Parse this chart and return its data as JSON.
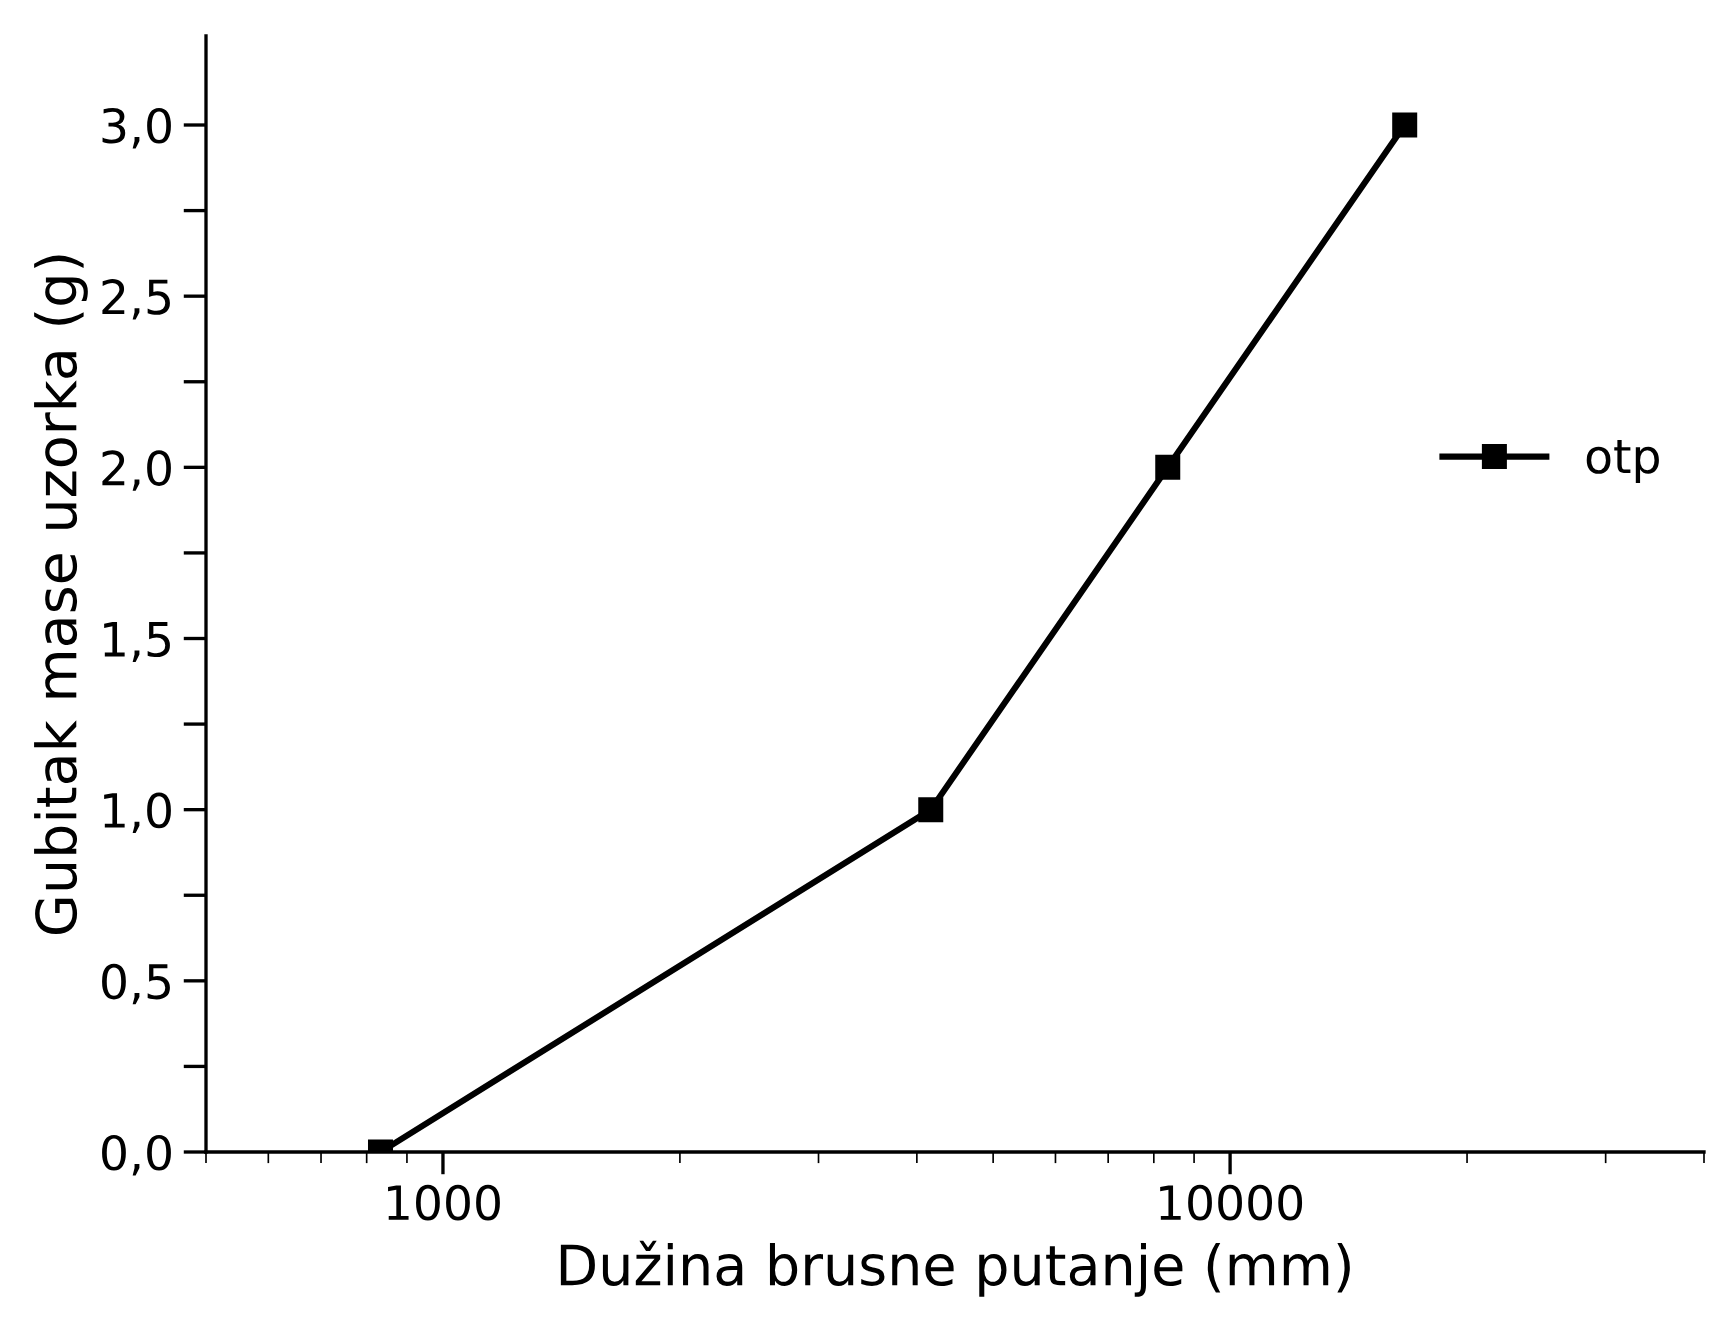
{
  "chart_data": {
    "type": "line",
    "xlabel": "Dužina brusne putanje (mm)",
    "ylabel": "Gubitak mase uzorka (g)",
    "x": [
      833,
      4166,
      8333,
      16666
    ],
    "series": [
      {
        "name": "otp",
        "color": "#000000",
        "values": [
          0.0,
          1.0,
          2.0,
          3.0
        ]
      }
    ],
    "log": "x",
    "xlim": [
      500,
      40000
    ],
    "xticks": [
      1000,
      10000
    ],
    "ylim": [
      0,
      3.26
    ],
    "yticks": [
      {
        "value": 0,
        "label": "0,0"
      },
      {
        "value": 0.25,
        "label": null
      },
      {
        "value": 0.5,
        "label": "0,5"
      },
      {
        "value": 0.75,
        "label": null
      },
      {
        "value": 1.0,
        "label": "1,0"
      },
      {
        "value": 1.25,
        "label": null
      },
      {
        "value": 1.5,
        "label": "1,5"
      },
      {
        "value": 1.75,
        "label": null
      },
      {
        "value": 2.0,
        "label": "2,0"
      },
      {
        "value": 2.25,
        "label": null
      },
      {
        "value": 2.5,
        "label": "2,5"
      },
      {
        "value": 2.75,
        "label": null
      },
      {
        "value": 3.0,
        "label": "3,0"
      }
    ],
    "marker": "square",
    "line_style": "solid",
    "legend": "right",
    "grid": false
  }
}
